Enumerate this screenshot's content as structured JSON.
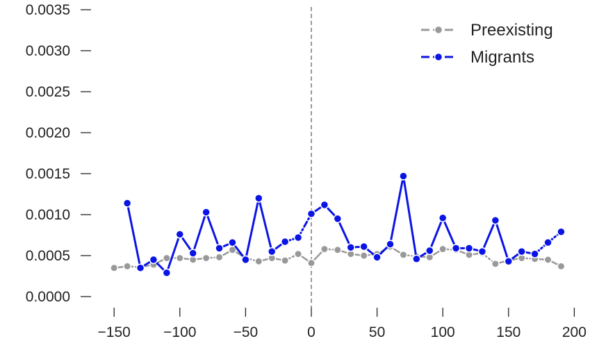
{
  "chart_data": {
    "type": "line",
    "title": "",
    "xlabel": "",
    "ylabel": "",
    "xlim": [
      -160,
      200
    ],
    "ylim": [
      0,
      0.0035
    ],
    "grid": false,
    "legend_position": "top-right",
    "vline": {
      "x": 0,
      "style": "dashed",
      "color": "#777777"
    },
    "xticks": [
      {
        "value": -150,
        "label": "−150"
      },
      {
        "value": -100,
        "label": "−100"
      },
      {
        "value": -50,
        "label": "−50"
      },
      {
        "value": 0,
        "label": "0"
      },
      {
        "value": 50,
        "label": "50"
      },
      {
        "value": 100,
        "label": "100"
      },
      {
        "value": 150,
        "label": "150"
      },
      {
        "value": 200,
        "label": "200"
      }
    ],
    "yticks": [
      {
        "value": 0,
        "label": "0.0000"
      },
      {
        "value": 0.0005,
        "label": "0.0005"
      },
      {
        "value": 0.001,
        "label": "0.0010"
      },
      {
        "value": 0.0015,
        "label": "0.0015"
      },
      {
        "value": 0.002,
        "label": "0.0020"
      },
      {
        "value": 0.0025,
        "label": "0.0025"
      },
      {
        "value": 0.003,
        "label": "0.0030"
      },
      {
        "value": 0.0035,
        "label": "0.0035"
      }
    ],
    "series": [
      {
        "name": "Preexisting",
        "color": "#999999",
        "x": [
          -150,
          -140,
          -130,
          -120,
          -110,
          -100,
          -90,
          -80,
          -70,
          -60,
          -50,
          -40,
          -30,
          -20,
          -10,
          0,
          10,
          20,
          30,
          40,
          50,
          60,
          70,
          80,
          90,
          100,
          110,
          120,
          130,
          140,
          150,
          160,
          170,
          180,
          190
        ],
        "y": [
          0.00035,
          0.00037,
          0.00036,
          0.00039,
          0.00047,
          0.00047,
          0.00045,
          0.00047,
          0.00048,
          0.00057,
          0.00047,
          0.00043,
          0.00047,
          0.00044,
          0.00052,
          0.00041,
          0.00058,
          0.00057,
          0.00052,
          0.0005,
          0.00052,
          0.00061,
          0.00051,
          0.00049,
          0.00048,
          0.00058,
          0.00057,
          0.00051,
          0.00053,
          0.0004,
          0.00044,
          0.00047,
          0.00046,
          0.00045,
          0.00037
        ]
      },
      {
        "name": "Migrants",
        "color": "#0a14e6",
        "x": [
          -140,
          -130,
          -120,
          -110,
          -100,
          -90,
          -80,
          -70,
          -60,
          -50,
          -40,
          -30,
          -20,
          -10,
          0,
          10,
          20,
          30,
          40,
          50,
          60,
          70,
          80,
          90,
          100,
          110,
          120,
          130,
          140,
          150,
          160,
          170,
          180,
          190
        ],
        "y": [
          0.00114,
          0.00035,
          0.00045,
          0.00029,
          0.00076,
          0.00053,
          0.00103,
          0.00059,
          0.00066,
          0.00045,
          0.0012,
          0.00055,
          0.00067,
          0.00072,
          0.00101,
          0.00112,
          0.00095,
          0.0006,
          0.00061,
          0.00048,
          0.00064,
          0.00147,
          0.00046,
          0.00056,
          0.00096,
          0.00059,
          0.00059,
          0.00055,
          0.00093,
          0.00043,
          0.00055,
          0.00052,
          0.00066,
          0.00079
        ]
      }
    ]
  }
}
